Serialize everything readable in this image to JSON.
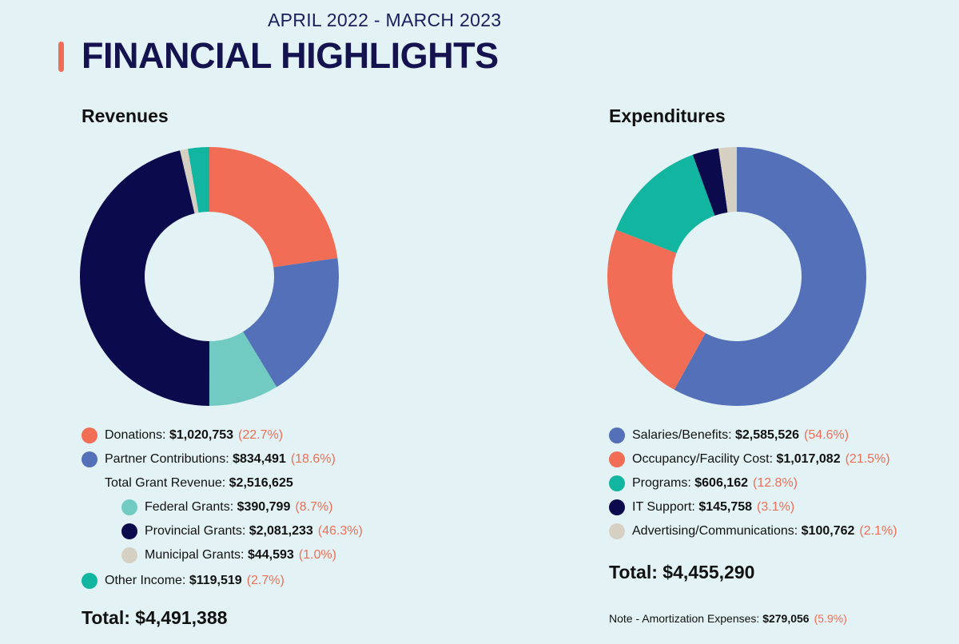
{
  "header": {
    "period": "APRIL 2022 - MARCH 2023",
    "title": "FINANCIAL HIGHLIGHTS"
  },
  "revenues": {
    "heading": "Revenues",
    "items": [
      {
        "label": "Donations:",
        "amount": "$1,020,753",
        "pct": "(22.7%)",
        "color": "#f16d55"
      },
      {
        "label": "Partner Contributions:",
        "amount": "$834,491",
        "pct": "(18.6%)",
        "color": "#5470b8"
      },
      {
        "label": "Federal Grants:",
        "amount": "$390,799",
        "pct": "(8.7%)",
        "color": "#71cbc3"
      },
      {
        "label": "Provincial Grants:",
        "amount": "$2,081,233",
        "pct": "(46.3%)",
        "color": "#0b0a4d"
      },
      {
        "label": "Municipal Grants:",
        "amount": "$44,593",
        "pct": "(1.0%)",
        "color": "#d6d0c2"
      },
      {
        "label": "Other Income:",
        "amount": "$119,519",
        "pct": "(2.7%)",
        "color": "#12b5a0"
      }
    ],
    "grant_label": "Total Grant Revenue:",
    "grant_amount": "$2,516,625",
    "total_label": "Total:",
    "total_amount": "$4,491,388"
  },
  "expenditures": {
    "heading": "Expenditures",
    "items": [
      {
        "label": "Salaries/Benefits:",
        "amount": "$2,585,526",
        "pct": "(54.6%)",
        "color": "#5470b8"
      },
      {
        "label": "Occupancy/Facility Cost:",
        "amount": "$1,017,082",
        "pct": "(21.5%)",
        "color": "#f16d55"
      },
      {
        "label": "Programs:",
        "amount": "$606,162",
        "pct": "(12.8%)",
        "color": "#12b5a0"
      },
      {
        "label": "IT Support:",
        "amount": "$145,758",
        "pct": "(3.1%)",
        "color": "#0b0a4d"
      },
      {
        "label": "Advertising/Communications:",
        "amount": "$100,762",
        "pct": "(2.1%)",
        "color": "#d6d0c2"
      }
    ],
    "total_label": "Total:",
    "total_amount": "$4,455,290",
    "note_label": "Note - Amortization Expenses:",
    "note_amount": "$279,056",
    "note_pct": "(5.9%)"
  },
  "chart_data": [
    {
      "type": "pie",
      "title": "Revenues",
      "categories": [
        "Donations",
        "Partner Contributions",
        "Federal Grants",
        "Provincial Grants",
        "Municipal Grants",
        "Other Income"
      ],
      "values": [
        1020753,
        834491,
        390799,
        2081233,
        44593,
        119519
      ],
      "colors": [
        "#f16d55",
        "#5470b8",
        "#71cbc3",
        "#0b0a4d",
        "#d6d0c2",
        "#12b5a0"
      ]
    },
    {
      "type": "pie",
      "title": "Expenditures",
      "categories": [
        "Salaries/Benefits",
        "Occupancy/Facility Cost",
        "Programs",
        "IT Support",
        "Advertising/Communications"
      ],
      "values": [
        2585526,
        1017082,
        606162,
        145758,
        100762
      ],
      "colors": [
        "#5470b8",
        "#f16d55",
        "#12b5a0",
        "#0b0a4d",
        "#d6d0c2"
      ]
    }
  ]
}
